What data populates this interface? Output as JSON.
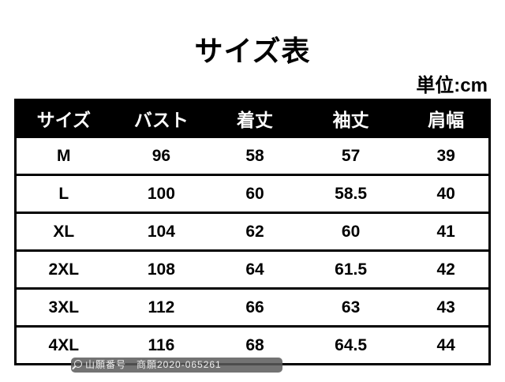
{
  "title": "サイズ表",
  "unit": "単位:cm",
  "table": {
    "headers": [
      "サイズ",
      "バスト",
      "着丈",
      "袖丈",
      "肩幅"
    ],
    "rows": [
      [
        "M",
        "96",
        "58",
        "57",
        "39"
      ],
      [
        "L",
        "100",
        "60",
        "58.5",
        "40"
      ],
      [
        "XL",
        "104",
        "62",
        "60",
        "41"
      ],
      [
        "2XL",
        "108",
        "64",
        "61.5",
        "42"
      ],
      [
        "3XL",
        "112",
        "66",
        "63",
        "43"
      ],
      [
        "4XL",
        "116",
        "68",
        "64.5",
        "44"
      ]
    ]
  },
  "watermark": {
    "icon": "search-icon",
    "text": "山願番号　商願2020-065261"
  }
}
